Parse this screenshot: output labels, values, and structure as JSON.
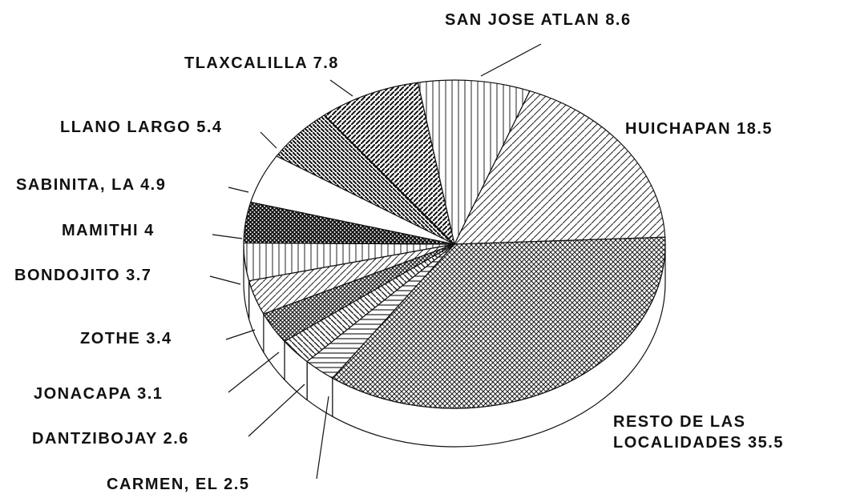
{
  "chart_data": {
    "type": "pie",
    "categories": [
      "SAN JOSE ATLAN",
      "HUICHAPAN",
      "RESTO DE LAS LOCALIDADES",
      "CARMEN, EL",
      "DANTZIBOJAY",
      "JONACAPA",
      "ZOTHE",
      "BONDOJITO",
      "MAMITHI",
      "SABINITA, LA",
      "LLANO LARGO",
      "TLAXCALILLA"
    ],
    "values": [
      8.6,
      18.5,
      35.5,
      2.5,
      2.6,
      3.1,
      3.4,
      3.7,
      4.0,
      4.9,
      5.4,
      7.8
    ]
  }
}
